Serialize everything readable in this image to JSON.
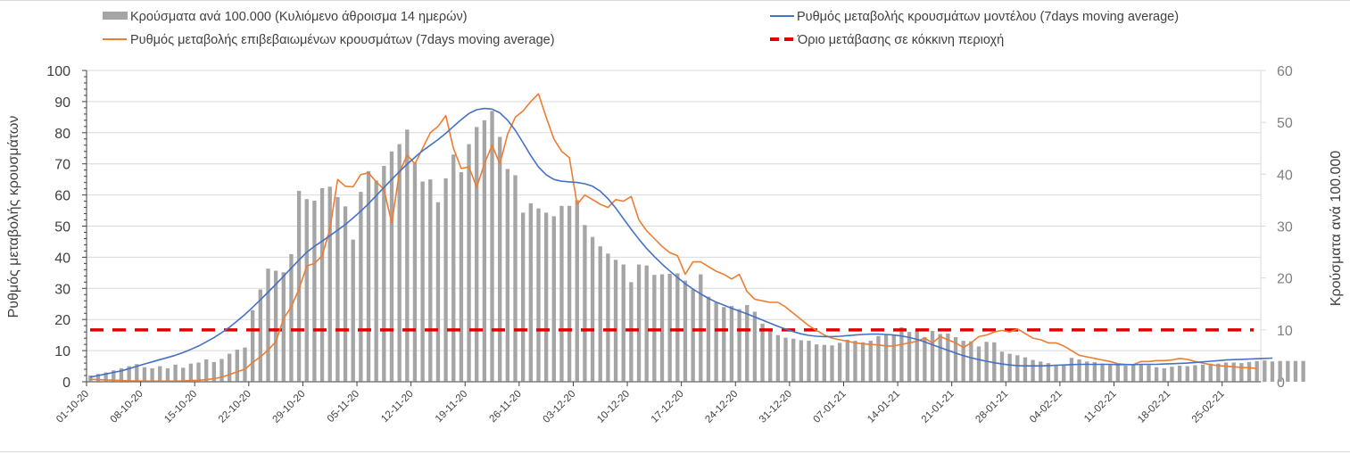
{
  "chart_data": {
    "type": "bar+line",
    "start_date": "01-10-20",
    "days": 152,
    "left_axis": {
      "title": "Ρυθμός μεταβολής κρουσμάτων",
      "range": [
        0,
        100
      ],
      "ticks": [
        "0",
        "10",
        "20",
        "30",
        "40",
        "50",
        "60",
        "70",
        "80",
        "90",
        "100"
      ]
    },
    "right_axis": {
      "title": "Κρούσματα ανά 100.000",
      "range": [
        0,
        60
      ],
      "ticks": [
        "0",
        "10",
        "20",
        "30",
        "40",
        "50",
        "60"
      ]
    },
    "x_ticks": [
      "01-10-20",
      "08-10-20",
      "15-10-20",
      "22-10-20",
      "29-10-20",
      "05-11-20",
      "12-11-20",
      "19-11-20",
      "26-11-20",
      "03-12-20",
      "10-12-20",
      "17-12-20",
      "24-12-20",
      "31-12-20",
      "07-01-21",
      "14-01-21",
      "21-01-21",
      "28-01-21",
      "04-02-21",
      "11-02-21",
      "18-02-21",
      "25-02-21"
    ],
    "grid": "horizontal",
    "legend": {
      "placement": "top",
      "items": [
        {
          "label": "Κρούσματα ανά 100.000 (Κυλιόμενο άθροισμα 14 ημερών)",
          "type": "bar",
          "color": "#a5a5a5"
        },
        {
          "label": "Ρυθμός μεταβολής κρουσμάτων μοντέλου (7days moving average)",
          "type": "line",
          "color": "#4472c4"
        },
        {
          "label": "Ρυθμός μεταβολής επιβεβαιωμένων κρουσμάτων (7days moving average)",
          "type": "line",
          "color": "#ed7d31"
        },
        {
          "label": "Όριο μετάβασης σε κόκκινη περιοχή",
          "type": "dashed",
          "color": "#e00000"
        }
      ]
    },
    "series": [
      {
        "name": "Κρούσματα ανά 100.000 (Κυλιόμενο άθροισμα 14 ημερών)",
        "type": "bar",
        "axis": "right",
        "color": "#a5a5a5",
        "values": [
          1.2,
          1.5,
          1.8,
          2.2,
          2.6,
          3.0,
          3.4,
          2.8,
          2.6,
          3.0,
          2.6,
          3.3,
          2.7,
          3.5,
          3.7,
          4.3,
          3.8,
          4.4,
          5.4,
          6.2,
          6.6,
          13.8,
          17.8,
          21.8,
          21.4,
          21.1,
          24.6,
          36.8,
          35.2,
          34.9,
          37.3,
          37.6,
          35.6,
          33.8,
          27.4,
          36.6,
          40.6,
          38.8,
          41.6,
          44.4,
          45.8,
          48.6,
          42.2,
          38.6,
          39.0,
          34.6,
          39.2,
          43.8,
          40.4,
          45.8,
          49.1,
          50.4,
          52.2,
          47.2,
          41.0,
          39.8,
          32.6,
          34.4,
          33.4,
          32.6,
          31.9,
          33.9,
          33.9,
          35.0,
          30.2,
          27.9,
          26.1,
          24.7,
          23.5,
          22.6,
          19.2,
          22.6,
          22.4,
          20.6,
          20.7,
          20.8,
          20.9,
          19.5,
          17.8,
          20.7,
          16.4,
          15.3,
          14.4,
          14.6,
          14.0,
          14.8,
          13.5,
          11.2,
          10.2,
          9.0,
          8.5,
          8.3,
          8.0,
          7.9,
          7.2,
          7.1,
          7.0,
          7.5,
          8.1,
          7.9,
          7.6,
          7.9,
          8.8,
          9.2,
          9.0,
          10.5,
          9.6,
          10.0,
          8.6,
          9.8,
          9.2,
          9.3,
          8.6,
          7.9,
          7.8,
          6.8,
          7.7,
          7.6,
          5.8,
          5.4,
          5.1,
          4.7,
          4.2,
          3.9,
          3.6,
          3.3,
          3.2,
          4.6,
          4.3,
          3.9,
          3.8,
          3.5,
          3.4,
          3.2,
          3.1,
          3.4,
          3.3,
          3.2,
          2.8,
          2.6,
          2.9,
          3.1,
          3.0,
          3.2,
          3.3,
          3.5,
          3.5,
          3.7,
          3.7,
          3.6,
          3.8,
          4.0,
          4.1,
          3.9,
          4.0,
          4.0,
          4.0,
          4.0
        ]
      },
      {
        "name": "Ρυθμός μεταβολής κρουσμάτων μοντέλου (7days moving average)",
        "type": "line",
        "axis": "left",
        "color": "#4472c4",
        "values": [
          1.5,
          2.0,
          2.5,
          3.0,
          3.5,
          4.2,
          5.0,
          5.7,
          6.4,
          7.1,
          7.8,
          8.5,
          9.4,
          10.4,
          11.5,
          12.8,
          14.2,
          15.8,
          17.5,
          19.5,
          21.6,
          23.9,
          26.3,
          28.8,
          31.3,
          33.9,
          36.5,
          39.1,
          41.6,
          43.5,
          45.2,
          46.9,
          48.7,
          50.5,
          52.6,
          54.8,
          57.2,
          59.8,
          62.4,
          65.0,
          67.5,
          69.9,
          72.1,
          74.2,
          76.0,
          77.8,
          79.8,
          82.0,
          84.2,
          86.2,
          87.4,
          87.8,
          87.6,
          86.4,
          84.0,
          80.8,
          76.8,
          72.7,
          69.0,
          66.5,
          65.0,
          64.4,
          64.2,
          64.0,
          63.6,
          62.8,
          61.2,
          58.8,
          55.8,
          52.4,
          49.0,
          45.8,
          42.8,
          40.2,
          37.8,
          35.6,
          33.5,
          31.5,
          29.8,
          28.2,
          26.8,
          25.6,
          24.6,
          23.6,
          22.7,
          21.8,
          20.8,
          19.8,
          18.8,
          17.8,
          16.9,
          16.1,
          15.4,
          14.9,
          14.6,
          14.5,
          14.5,
          14.6,
          14.8,
          15.0,
          15.2,
          15.3,
          15.3,
          15.2,
          15.0,
          14.7,
          14.2,
          13.6,
          12.8,
          11.9,
          11.0,
          10.1,
          9.2,
          8.4,
          7.7,
          7.1,
          6.6,
          6.1,
          5.7,
          5.4,
          5.2,
          5.1,
          5.1,
          5.1,
          5.2,
          5.3,
          5.4,
          5.5,
          5.6,
          5.6,
          5.6,
          5.6,
          5.6,
          5.5,
          5.5,
          5.5,
          5.6,
          5.6,
          5.6,
          5.7,
          5.8,
          5.9,
          6.0,
          6.2,
          6.4,
          6.6,
          6.8,
          7.0,
          7.1,
          7.2,
          7.3,
          7.4,
          7.5,
          7.6
        ]
      },
      {
        "name": "Ρυθμός μεταβολής επιβεβαιωμένων κρουσμάτων (7days moving average)",
        "type": "line",
        "axis": "left",
        "color": "#ed7d31",
        "values": [
          0.8,
          0.7,
          0.6,
          0.5,
          0.4,
          0.3,
          0.3,
          0.2,
          0.2,
          0.2,
          0.2,
          0.2,
          0.3,
          0.4,
          0.5,
          0.7,
          1.0,
          1.5,
          2.3,
          3.2,
          4.0,
          6.2,
          8.0,
          10.2,
          12.8,
          20.3,
          24.0,
          29.8,
          37.2,
          38.0,
          40.5,
          49.0,
          65.0,
          62.8,
          62.6,
          66.6,
          67.1,
          64.2,
          61.8,
          51.0,
          67.2,
          72.8,
          70.0,
          75.0,
          80.0,
          82.0,
          85.5,
          75.0,
          68.5,
          69.0,
          62.5,
          70.0,
          76.0,
          70.0,
          79.5,
          85.0,
          87.0,
          90.0,
          92.5,
          85.0,
          78.0,
          74.0,
          72.0,
          57.0,
          60.0,
          58.5,
          57.0,
          56.0,
          58.5,
          58.0,
          59.5,
          52.0,
          48.5,
          46.0,
          43.5,
          41.5,
          40.5,
          34.5,
          38.5,
          38.5,
          37.0,
          35.5,
          34.5,
          33.0,
          34.5,
          29.0,
          26.5,
          26.0,
          25.5,
          25.5,
          24.0,
          22.0,
          20.0,
          18.0,
          16.5,
          15.0,
          14.0,
          13.5,
          13.0,
          12.5,
          12.2,
          12.0,
          11.8,
          11.5,
          11.5,
          12.0,
          12.5,
          13.0,
          14.0,
          12.5,
          14.5,
          13.5,
          12.5,
          11.0,
          12.5,
          14.5,
          15.0,
          16.0,
          16.5,
          16.0,
          17.0,
          15.5,
          14.0,
          13.5,
          12.5,
          12.5,
          11.5,
          10.0,
          8.5,
          8.0,
          7.5,
          7.0,
          6.5,
          5.8,
          5.6,
          5.5,
          6.5,
          6.5,
          6.8,
          6.8,
          7.0,
          7.5,
          7.2,
          6.5,
          6.0,
          5.5,
          5.2,
          5.0,
          4.8,
          4.6,
          4.5,
          4.3
        ]
      },
      {
        "name": "Όριο μετάβασης σε κόκκινη περιοχή",
        "type": "dashed-line",
        "axis": "right",
        "color": "#e00000",
        "value": 10
      }
    ]
  }
}
